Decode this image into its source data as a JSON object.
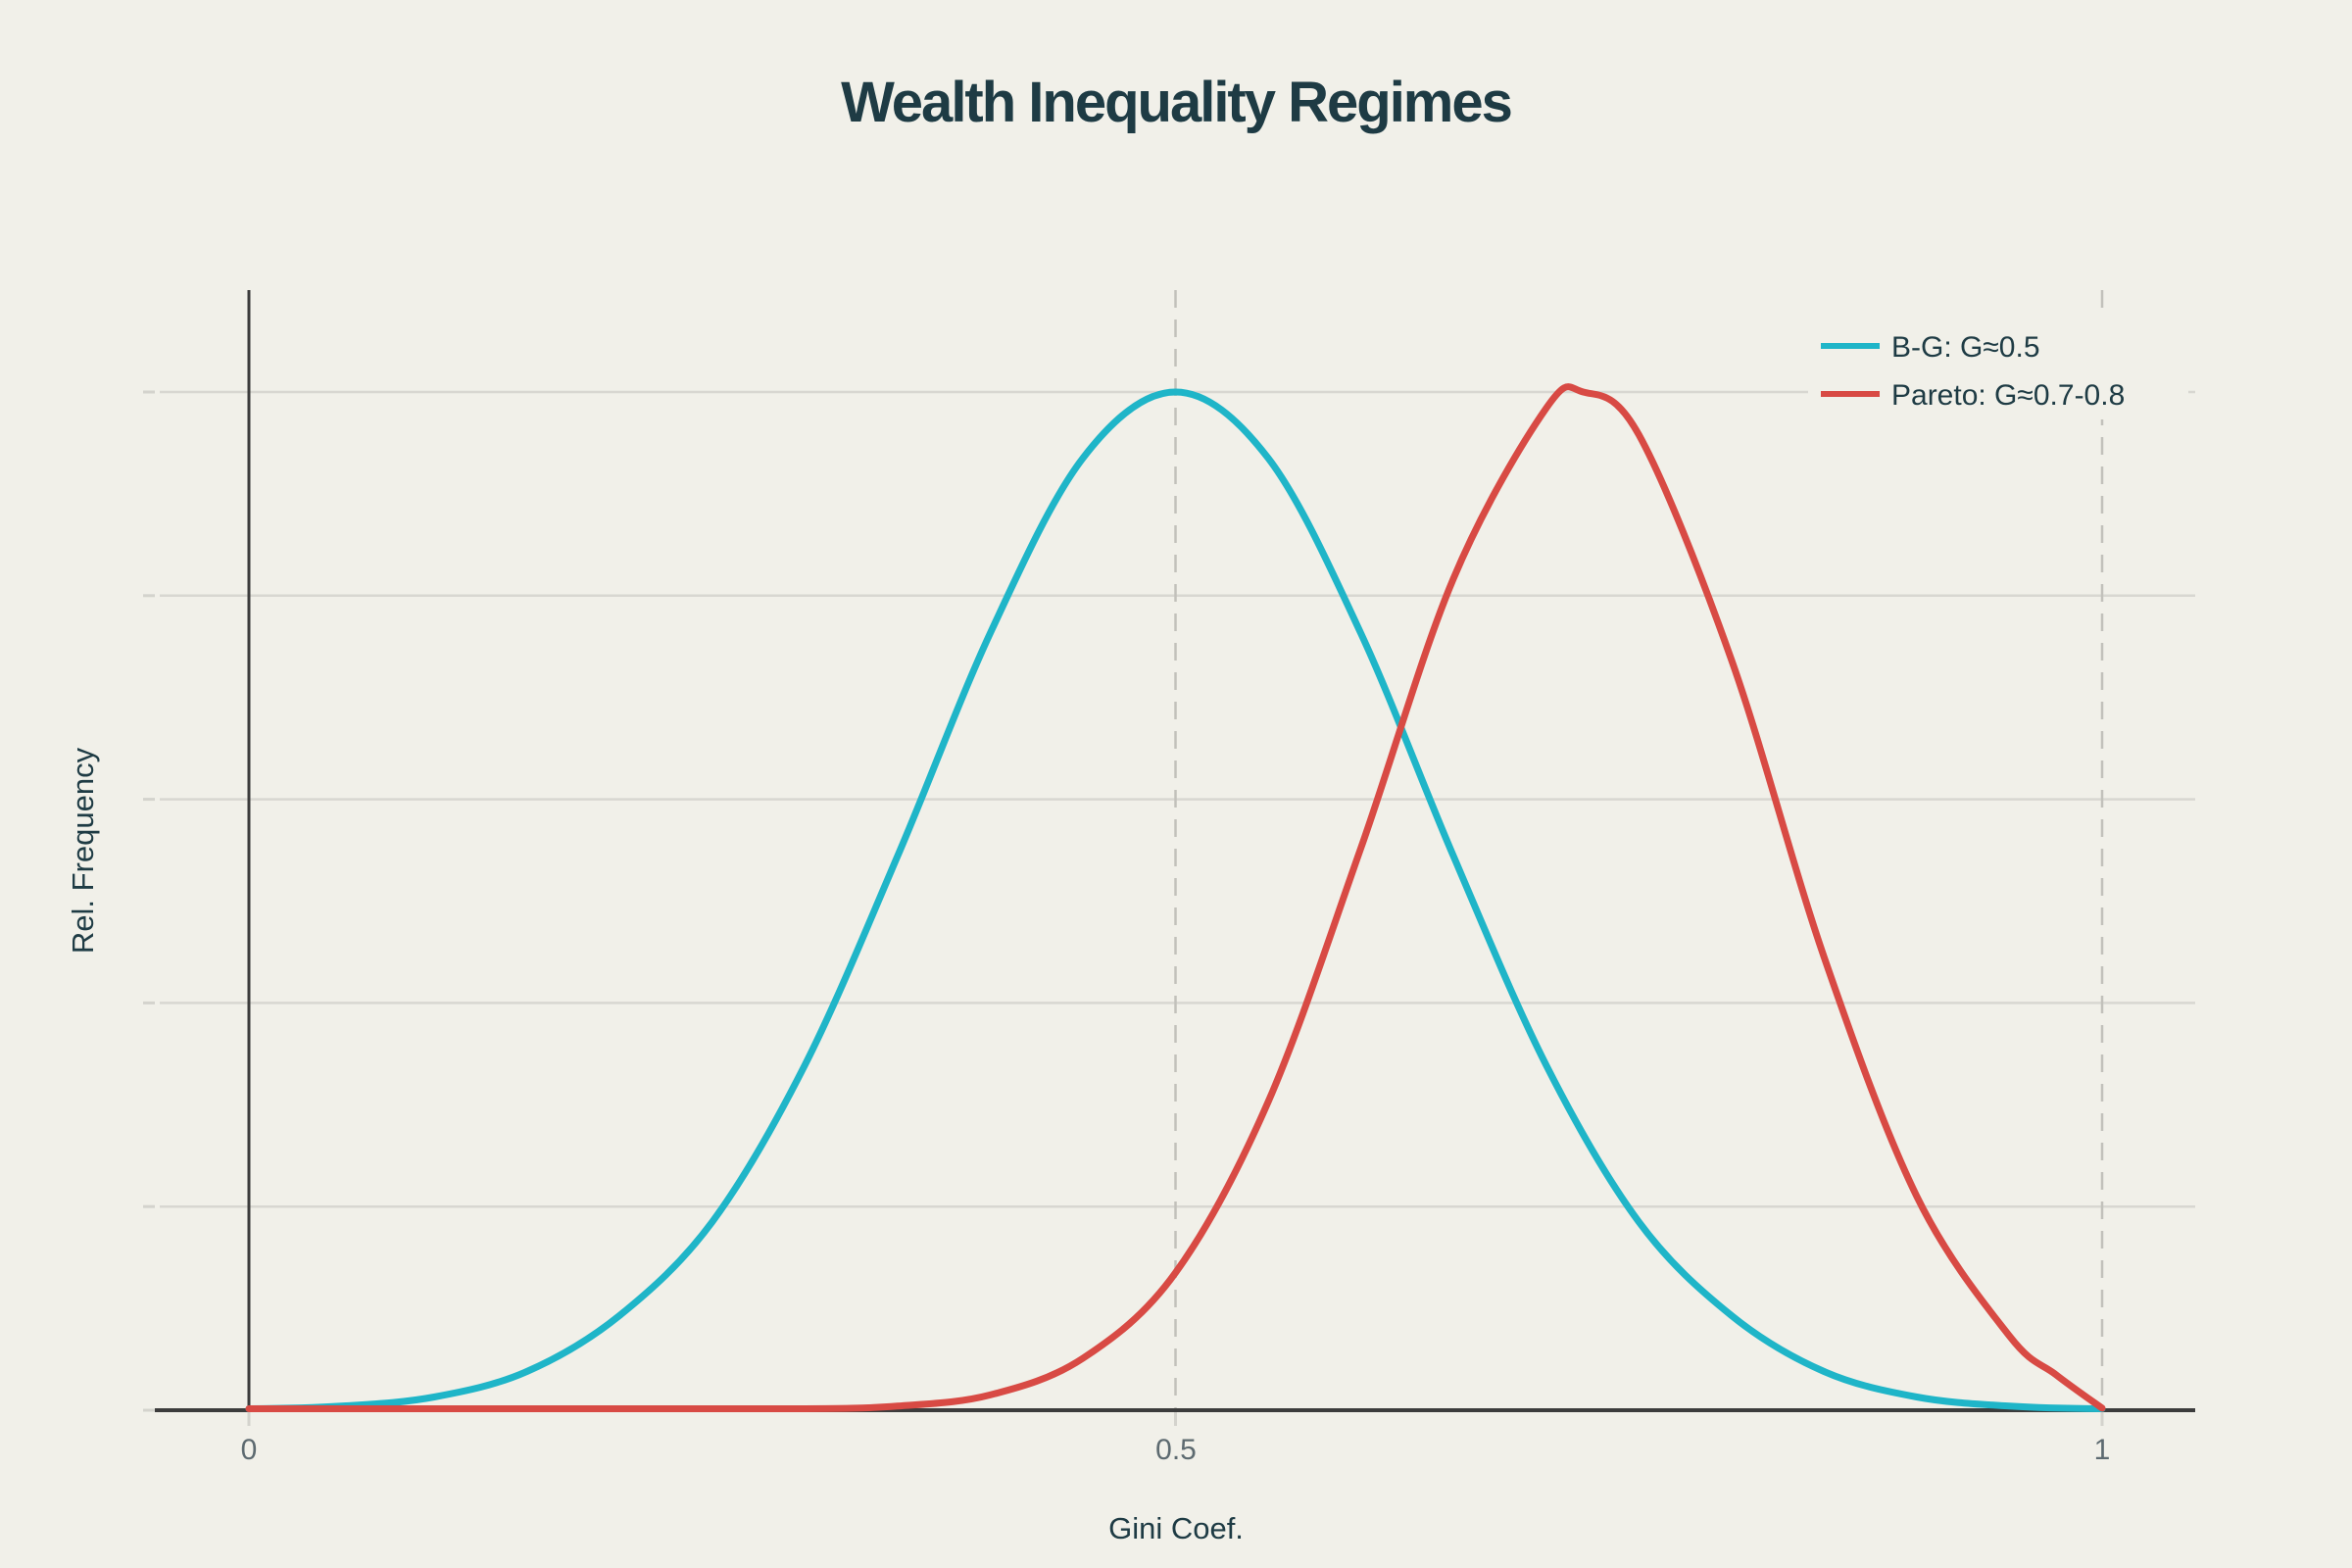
{
  "chart_data": {
    "type": "line",
    "title": "Wealth Inequality Regimes",
    "xlabel": "Gini Coef.",
    "ylabel": "Rel. Frequency",
    "xlim": [
      -0.05,
      1.05
    ],
    "ylim": [
      0,
      1.1
    ],
    "x_ticks": [
      0,
      0.5,
      1
    ],
    "x_tick_labels": [
      "0",
      "0.5",
      "1"
    ],
    "y_tick_labels": [],
    "y_gridline_values": [
      0.2,
      0.4,
      0.6,
      0.8,
      1.0
    ],
    "x_dashed_gridlines": [
      0.5,
      1.0
    ],
    "grid": "horizontal solid gridlines; vertical dashed gridlines at x=0.5 and x=1",
    "legend_position": "top-right",
    "series": [
      {
        "name": "B-G: G≈0.5",
        "color": "#1fb5c8",
        "peak_x": 0.5,
        "x": [
          0,
          0.05,
          0.1,
          0.15,
          0.2,
          0.25,
          0.3,
          0.35,
          0.4,
          0.45,
          0.5,
          0.55,
          0.6,
          0.65,
          0.7,
          0.75,
          0.8,
          0.85,
          0.9,
          0.95,
          1.0
        ],
        "y": [
          0.001,
          0.004,
          0.013,
          0.038,
          0.093,
          0.185,
          0.339,
          0.544,
          0.763,
          0.935,
          1.0,
          0.935,
          0.763,
          0.544,
          0.339,
          0.185,
          0.093,
          0.038,
          0.013,
          0.004,
          0.001
        ]
      },
      {
        "name": "Pareto: G≈0.7-0.8",
        "color": "#d84a44",
        "peak_x": 0.72,
        "x": [
          0,
          0.05,
          0.1,
          0.15,
          0.2,
          0.25,
          0.3,
          0.35,
          0.4,
          0.45,
          0.5,
          0.55,
          0.6,
          0.65,
          0.7,
          0.72,
          0.75,
          0.8,
          0.85,
          0.9,
          0.95,
          0.975,
          1.0
        ],
        "y": [
          0.001,
          0.001,
          0.001,
          0.001,
          0.001,
          0.001,
          0.001,
          0.004,
          0.015,
          0.051,
          0.135,
          0.303,
          0.552,
          0.817,
          0.984,
          1.0,
          0.958,
          0.737,
          0.445,
          0.21,
          0.073,
          0.035,
          0.002
        ]
      }
    ],
    "colors": {
      "background": "#f1f0e9",
      "axis_line": "#3c3c3c",
      "gridline": "#d8d7d1",
      "dashed_gridline": "#c2c1bb",
      "tick_mark": "#d4d3cd",
      "heading_text": "#1e3b44",
      "tick_label_text": "#5d6a70"
    }
  }
}
